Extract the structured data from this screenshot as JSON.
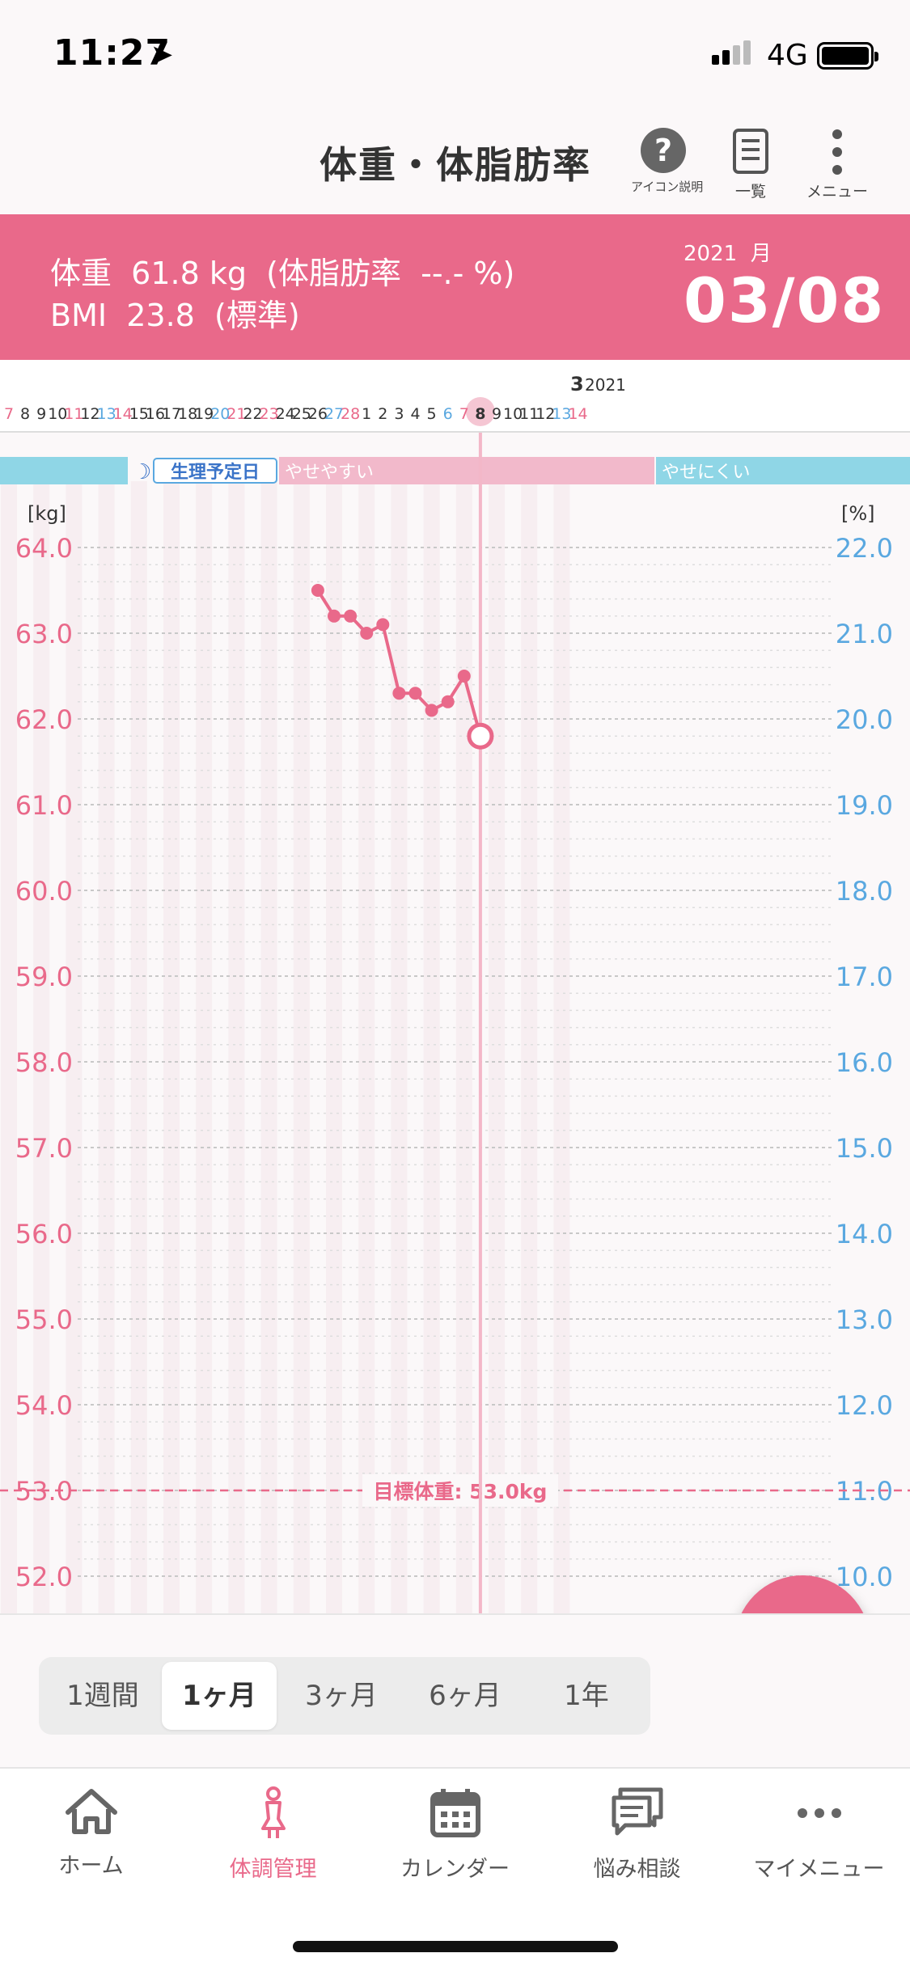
{
  "status_bar": {
    "time": "11:27",
    "network": "4G"
  },
  "header": {
    "title": "体重・体脂肪率",
    "icon_help_label": "アイコン説明",
    "list_label": "一覧",
    "menu_label": "メニュー"
  },
  "summary": {
    "weight_line": "体重  61.8 kg  (体脂肪率  --.- %)",
    "bmi_line": "BMI  23.8  (標準)",
    "year_month": "2021  月",
    "date": "03/08"
  },
  "date_strip": {
    "month_label": "3",
    "year_label": "2021",
    "days": [
      {
        "d": "7",
        "c": "sun"
      },
      {
        "d": "8",
        "c": "n"
      },
      {
        "d": "9",
        "c": "n"
      },
      {
        "d": "10",
        "c": "n"
      },
      {
        "d": "11",
        "c": "sun"
      },
      {
        "d": "12",
        "c": "n"
      },
      {
        "d": "13",
        "c": "sat"
      },
      {
        "d": "14",
        "c": "sun"
      },
      {
        "d": "15",
        "c": "n"
      },
      {
        "d": "16",
        "c": "n"
      },
      {
        "d": "17",
        "c": "n"
      },
      {
        "d": "18",
        "c": "n"
      },
      {
        "d": "19",
        "c": "n"
      },
      {
        "d": "20",
        "c": "sat"
      },
      {
        "d": "21",
        "c": "sun"
      },
      {
        "d": "22",
        "c": "n"
      },
      {
        "d": "23",
        "c": "sun"
      },
      {
        "d": "24",
        "c": "n"
      },
      {
        "d": "25",
        "c": "n"
      },
      {
        "d": "26",
        "c": "n"
      },
      {
        "d": "27",
        "c": "sat"
      },
      {
        "d": "28",
        "c": "sun"
      },
      {
        "d": "1",
        "c": "n"
      },
      {
        "d": "2",
        "c": "n"
      },
      {
        "d": "3",
        "c": "n"
      },
      {
        "d": "4",
        "c": "n"
      },
      {
        "d": "5",
        "c": "n"
      },
      {
        "d": "6",
        "c": "sat"
      },
      {
        "d": "7",
        "c": "sun"
      },
      {
        "d": "8",
        "c": "sel"
      },
      {
        "d": "9",
        "c": "n"
      },
      {
        "d": "10",
        "c": "n"
      },
      {
        "d": "11",
        "c": "n"
      },
      {
        "d": "12",
        "c": "n"
      },
      {
        "d": "13",
        "c": "sat"
      },
      {
        "d": "14",
        "c": "sun"
      }
    ],
    "selected_index": 29
  },
  "phase_bar": {
    "period_label": "生理予定日",
    "easy_label": "やせやすい",
    "hard_label": "やせにくい"
  },
  "colors": {
    "accent": "#e9698a",
    "blue": "#5aa8e0",
    "cyan": "#8fd6e6",
    "pink_band": "#f2b9cb"
  },
  "chart_data": {
    "type": "line",
    "left_axis_label": "[kg]",
    "right_axis_label": "[%]",
    "left_ticks": [
      "64.0",
      "63.0",
      "62.0",
      "61.0",
      "60.0",
      "59.0",
      "58.0",
      "57.0",
      "56.0",
      "55.0",
      "54.0",
      "53.0",
      "52.0"
    ],
    "right_ticks": [
      "22.0",
      "21.0",
      "20.0",
      "19.0",
      "18.0",
      "17.0",
      "16.0",
      "15.0",
      "14.0",
      "13.0",
      "12.0",
      "11.0",
      "10.0"
    ],
    "ylim": [
      52.0,
      64.0
    ],
    "x": [
      "2/26",
      "2/27",
      "2/28",
      "3/1",
      "3/2",
      "3/3",
      "3/4",
      "3/5",
      "3/6",
      "3/7",
      "3/8"
    ],
    "series": [
      {
        "values": [
          63.5,
          63.2,
          63.2,
          63.0,
          63.1,
          62.3,
          62.3,
          62.1,
          62.2,
          62.5,
          61.8
        ]
      }
    ],
    "goal_value": 53.0,
    "goal_label": "目標体重: 53.0kg"
  },
  "range_selector": {
    "options": [
      "1週間",
      "1ヶ月",
      "3ヶ月",
      "6ヶ月",
      "1年"
    ],
    "active": "1ヶ月"
  },
  "tabbar": {
    "home": "ホーム",
    "health": "体調管理",
    "calendar": "カレンダー",
    "consult": "悩み相談",
    "mymenu": "マイメニュー"
  }
}
